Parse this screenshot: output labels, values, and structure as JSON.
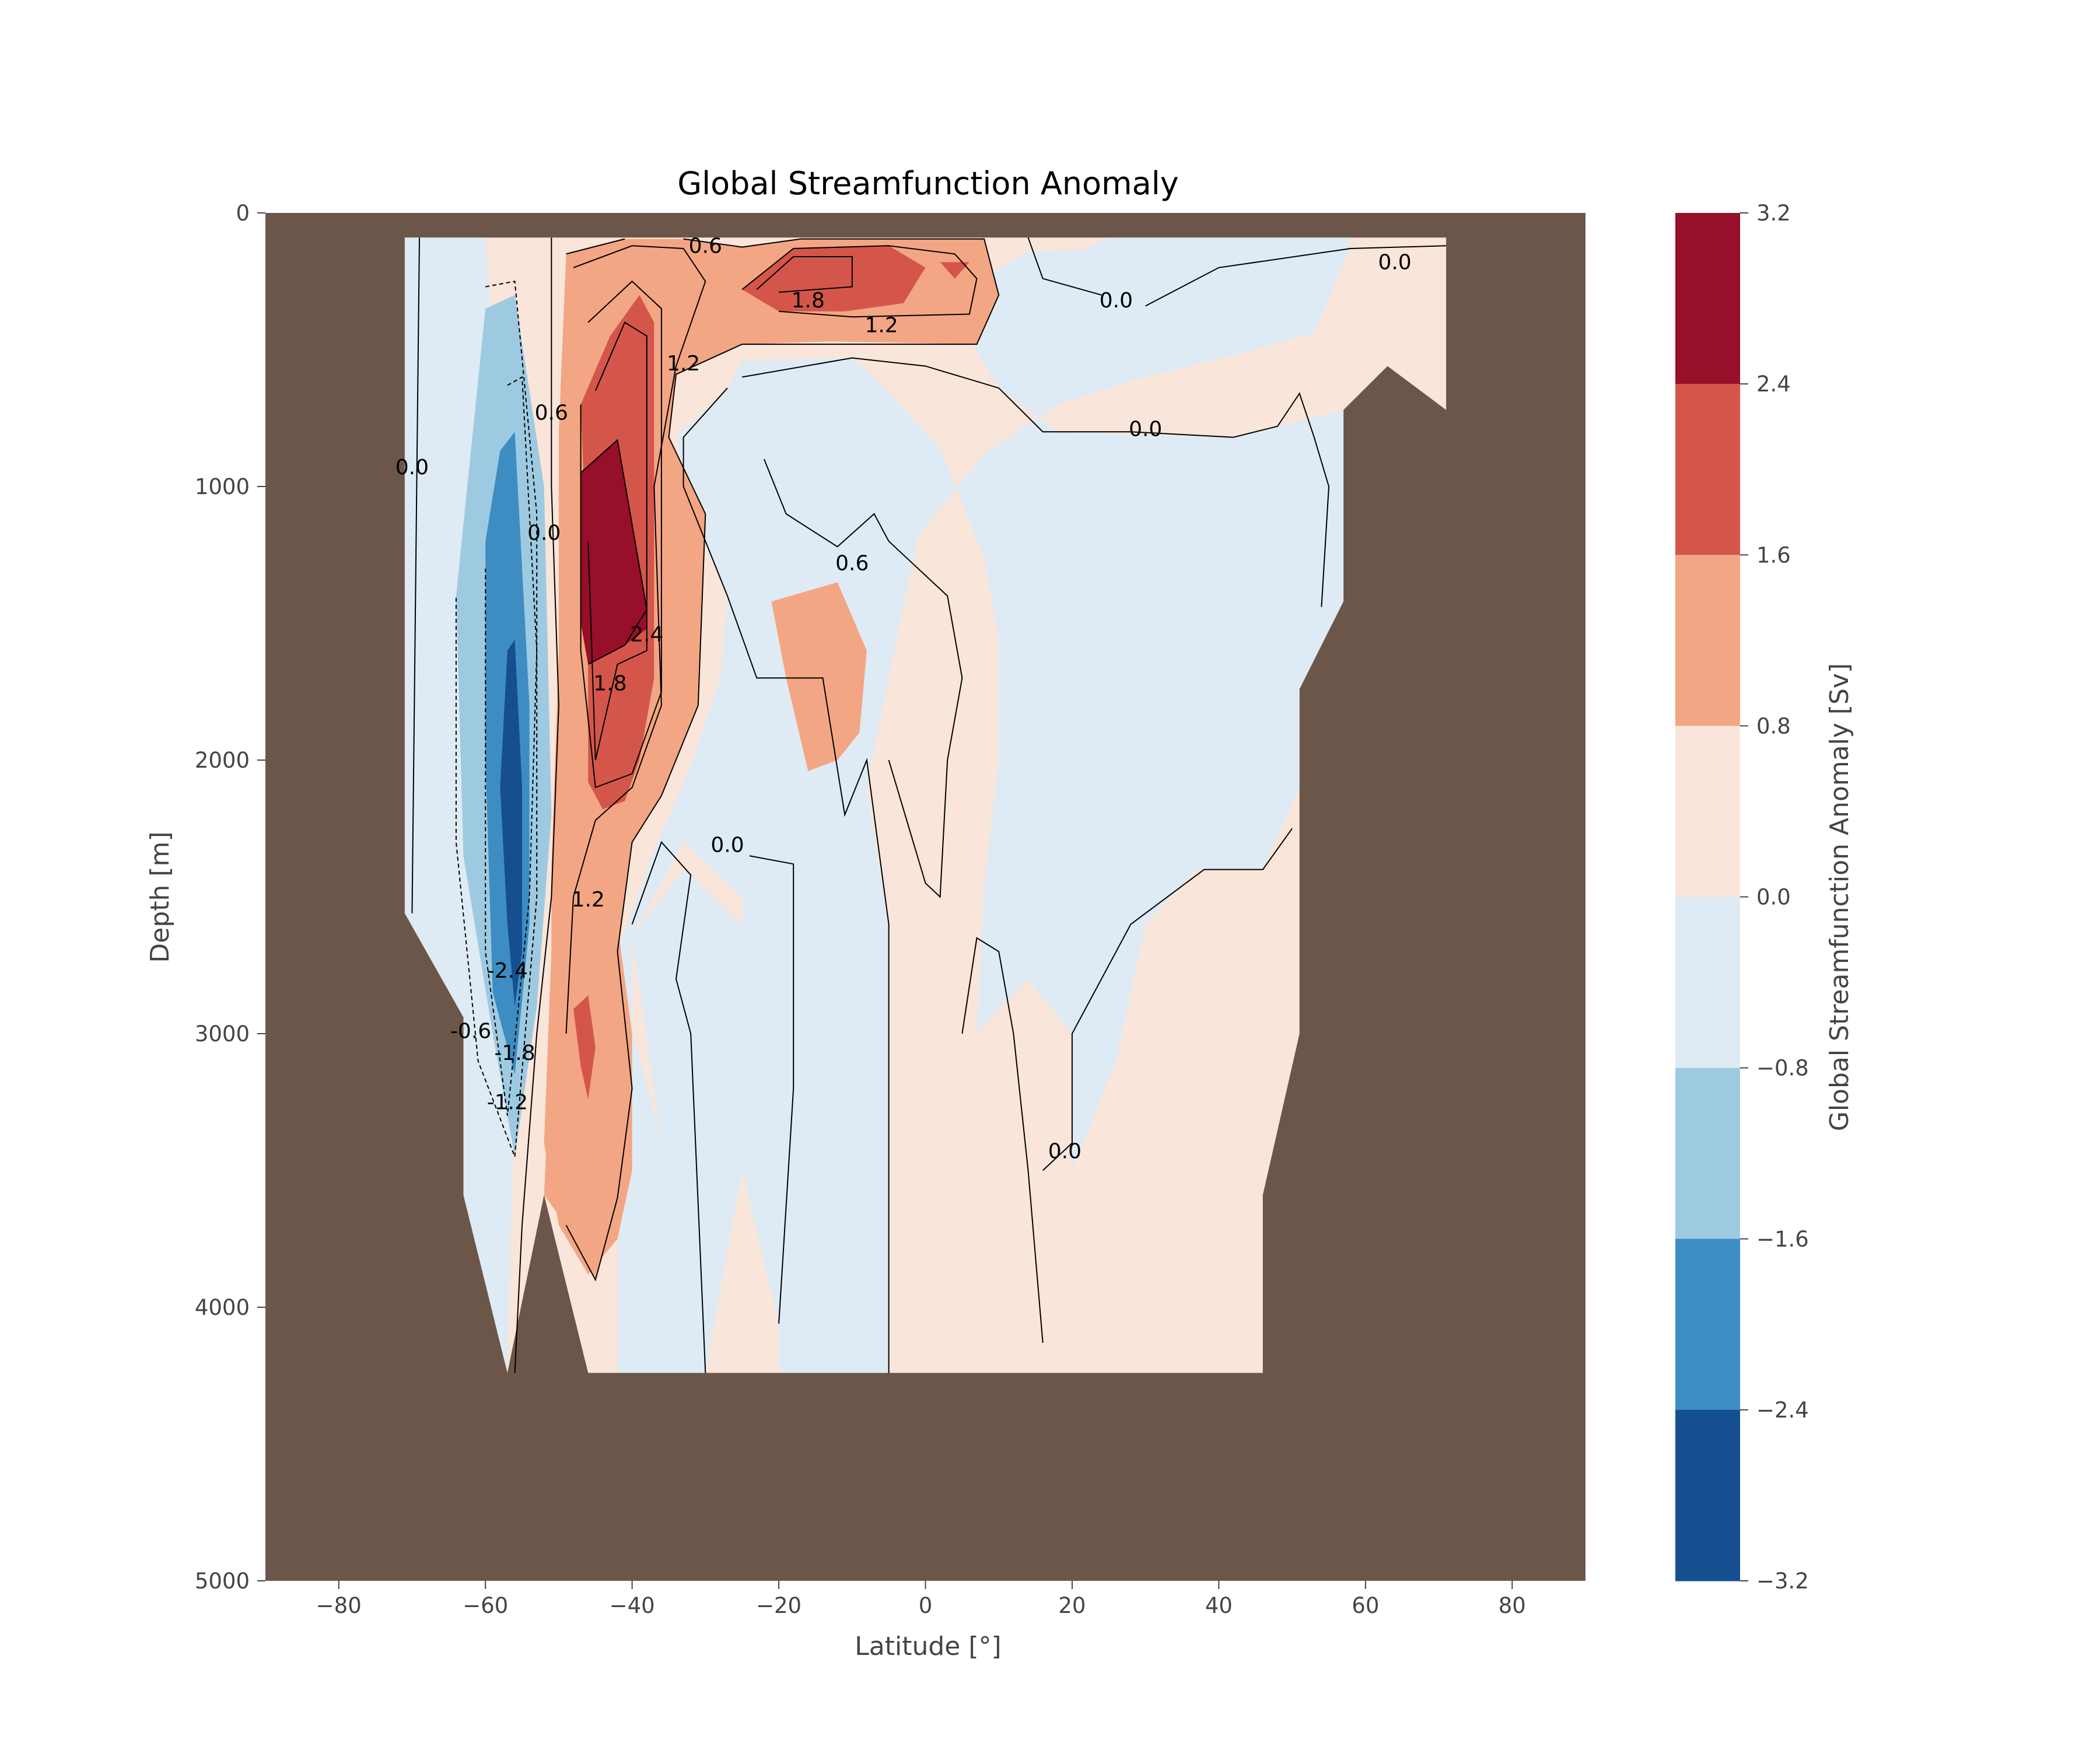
{
  "chart_data": {
    "type": "heatmap",
    "subtype": "filled-contour",
    "title": "Global Streamfunction Anomaly",
    "xlabel": "Latitude [°]",
    "ylabel": "Depth [m]",
    "xlim": [
      -90,
      90
    ],
    "ylim": [
      5000,
      0
    ],
    "y_inverted": true,
    "x_ticks": [
      "−80",
      "−60",
      "−40",
      "−20",
      "0",
      "20",
      "40",
      "60",
      "80"
    ],
    "x_tick_values": [
      -80,
      -60,
      -40,
      -20,
      0,
      20,
      40,
      60,
      80
    ],
    "y_ticks": [
      "0",
      "1000",
      "2000",
      "3000",
      "4000",
      "5000"
    ],
    "y_tick_values": [
      0,
      1000,
      2000,
      3000,
      4000,
      5000
    ],
    "grid": false,
    "colorbar": {
      "label": "Global Streamfunction Anomaly [Sv]",
      "levels": [
        -3.2,
        -2.4,
        -1.6,
        -0.8,
        0.0,
        0.8,
        1.6,
        2.4,
        3.2
      ],
      "tick_labels": [
        "3.2",
        "2.4",
        "1.6",
        "0.8",
        "0.0",
        "−0.8",
        "−1.6",
        "−2.4",
        "−3.2"
      ],
      "colors": [
        "#154f8f",
        "#3d8dc3",
        "#9ecae1",
        "#deebf4",
        "#f9e5da",
        "#f3a683",
        "#d4564a",
        "#970f28"
      ]
    },
    "land_color": "#6b5649",
    "contour_line_color": "#000000",
    "contour_labels": [
      {
        "text": "0.6",
        "x": -30,
        "y": 120
      },
      {
        "text": "1.8",
        "x": -16,
        "y": 320
      },
      {
        "text": "1.2",
        "x": -6,
        "y": 410
      },
      {
        "text": "0.0",
        "x": 26,
        "y": 320
      },
      {
        "text": "0.0",
        "x": 64,
        "y": 180
      },
      {
        "text": "1.2",
        "x": -33,
        "y": 550
      },
      {
        "text": "0.6",
        "x": -51,
        "y": 730
      },
      {
        "text": "0.0",
        "x": 30,
        "y": 790
      },
      {
        "text": "0.0",
        "x": -70,
        "y": 930
      },
      {
        "text": "0.0",
        "x": -52,
        "y": 1170
      },
      {
        "text": "0.6",
        "x": -10,
        "y": 1280
      },
      {
        "text": "2.4",
        "x": -38,
        "y": 1540
      },
      {
        "text": "1.8",
        "x": -43,
        "y": 1720
      },
      {
        "text": "0.0",
        "x": -27,
        "y": 2310
      },
      {
        "text": "1.2",
        "x": -46,
        "y": 2510
      },
      {
        "text": "-2.4",
        "x": -57,
        "y": 2770
      },
      {
        "text": "-0.6",
        "x": -62,
        "y": 2990
      },
      {
        "text": "-1.8",
        "x": -56,
        "y": 3070
      },
      {
        "text": "-1.2",
        "x": -57,
        "y": 3250
      },
      {
        "text": "0.0",
        "x": 19,
        "y": 3430
      }
    ]
  }
}
